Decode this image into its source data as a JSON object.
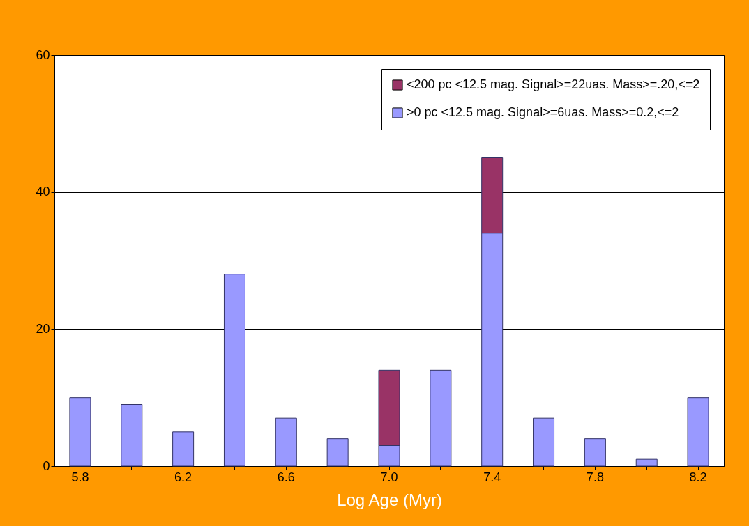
{
  "chart_data": {
    "type": "bar",
    "stacked": true,
    "xlabel": "Log Age (Myr)",
    "categories": [
      "5.8",
      null,
      "6.2",
      null,
      "6.6",
      null,
      "7.0",
      null,
      "7.4",
      null,
      "7.8",
      null,
      "8.2"
    ],
    "series": [
      {
        "name": ">0 pc <12.5 mag. Signal>=6uas. Mass>=0.2,<=2",
        "color": "#9999ff",
        "values": [
          10,
          9,
          5,
          28,
          7,
          4,
          3,
          14,
          34,
          7,
          4,
          1,
          10
        ]
      },
      {
        "name": "<200 pc <12.5 mag. Signal>=22uas. Mass>=.20,<=2",
        "color": "#993366",
        "values": [
          null,
          null,
          null,
          null,
          null,
          null,
          11,
          null,
          11,
          null,
          null,
          null,
          null
        ]
      }
    ],
    "ylim": [
      0,
      60
    ],
    "yticks": [
      0,
      20,
      40,
      60
    ],
    "grid": "y",
    "legend": "top right"
  }
}
